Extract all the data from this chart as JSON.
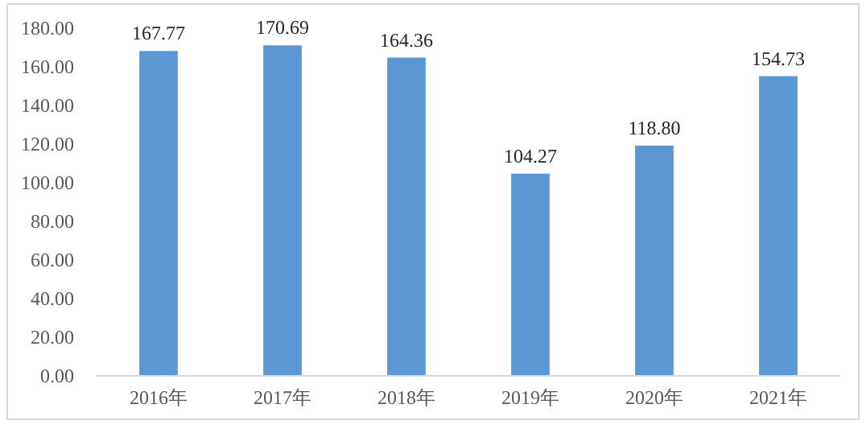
{
  "chart_data": {
    "type": "bar",
    "categories": [
      "2016年",
      "2017年",
      "2018年",
      "2019年",
      "2020年",
      "2021年"
    ],
    "values": [
      167.77,
      170.69,
      164.36,
      104.27,
      118.8,
      154.73
    ],
    "value_labels": [
      "167.77",
      "170.69",
      "164.36",
      "104.27",
      "118.80",
      "154.73"
    ],
    "color": "#5b97d2",
    "ylim": [
      0,
      180
    ],
    "yticks": [
      {
        "value": 0,
        "label": "0.00"
      },
      {
        "value": 20,
        "label": "20.00"
      },
      {
        "value": 40,
        "label": "40.00"
      },
      {
        "value": 60,
        "label": "60.00"
      },
      {
        "value": 80,
        "label": "80.00"
      },
      {
        "value": 100,
        "label": "100.00"
      },
      {
        "value": 120,
        "label": "120.00"
      },
      {
        "value": 140,
        "label": "140.00"
      },
      {
        "value": 160,
        "label": "160.00"
      },
      {
        "value": 180,
        "label": "180.00"
      }
    ],
    "grid": false,
    "legend": false
  }
}
